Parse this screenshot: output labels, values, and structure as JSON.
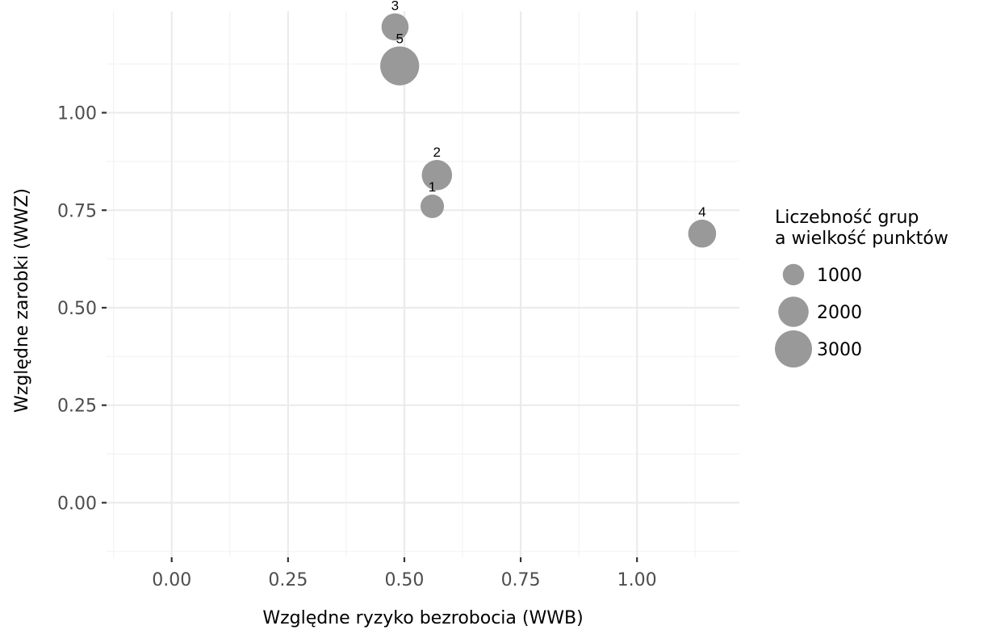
{
  "chart_data": {
    "type": "scatter",
    "xlabel": "Względne ryzyko bezrobocia (WWB)",
    "ylabel": "Względne zarobki (WWZ)",
    "xlim": [
      -0.14,
      1.22
    ],
    "ylim": [
      -0.14,
      1.26
    ],
    "x_ticks": [
      0.0,
      0.25,
      0.5,
      0.75,
      1.0
    ],
    "x_tick_labels": [
      "0.00",
      "0.25",
      "0.50",
      "0.75",
      "1.00"
    ],
    "y_ticks": [
      0.0,
      0.25,
      0.5,
      0.75,
      1.0
    ],
    "y_tick_labels": [
      "0.00",
      "0.25",
      "0.50",
      "0.75",
      "1.00"
    ],
    "grid": true,
    "point_color": "#999999",
    "points": [
      {
        "label": "1",
        "x": 0.56,
        "y": 0.76,
        "size": 1200
      },
      {
        "label": "2",
        "x": 0.57,
        "y": 0.84,
        "size": 2000
      },
      {
        "label": "3",
        "x": 0.48,
        "y": 1.22,
        "size": 1600
      },
      {
        "label": "4",
        "x": 1.14,
        "y": 0.69,
        "size": 1700
      },
      {
        "label": "5",
        "x": 0.49,
        "y": 1.12,
        "size": 3300
      }
    ],
    "legend": {
      "title_lines": [
        "Liczebność grup",
        "a wielkość punktów"
      ],
      "position": "right",
      "entries": [
        {
          "label": "1000",
          "size": 1000
        },
        {
          "label": "2000",
          "size": 2000
        },
        {
          "label": "3000",
          "size": 3000
        }
      ]
    }
  }
}
